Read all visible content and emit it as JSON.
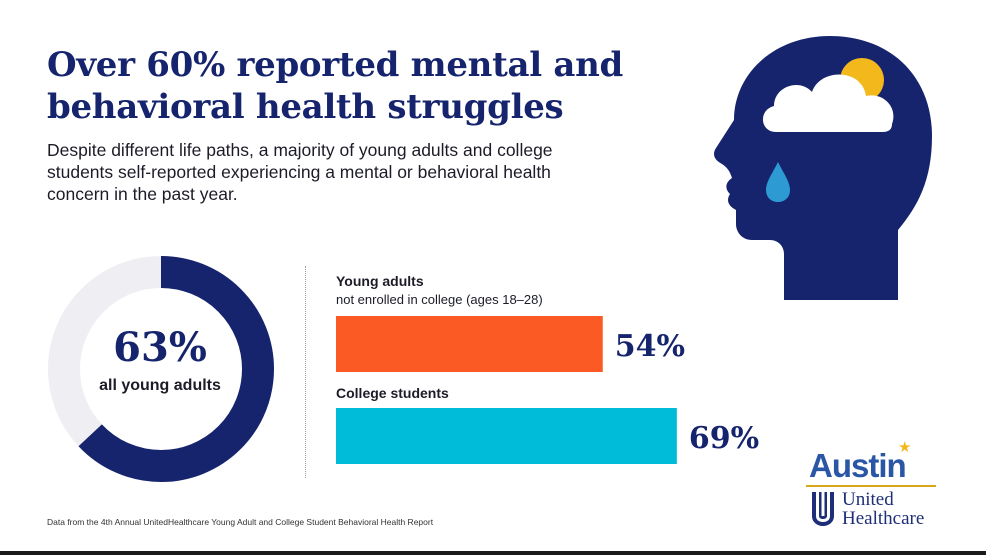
{
  "title": "Over 60% reported mental and behavioral health struggles",
  "subtitle": "Despite different life paths, a majority of young adults and college students self-reported experiencing a mental or behavioral health concern in the past year.",
  "footnote": "Data from the 4th Annual UnitedHealthcare Young Adult and College Student Behavioral Health Report",
  "logo": {
    "austin": "Austin",
    "line1": "United",
    "line2": "Healthcare",
    "star": "★"
  },
  "icons": {
    "illustration": "head-with-raincloud-and-tear-icon",
    "logo_mark": "shield-stripes-icon"
  },
  "colors": {
    "navy": "#16246e",
    "ring_track": "#efeef3",
    "orange": "#fb5a24",
    "cyan": "#00bcd8",
    "sun": "#f2b81c",
    "tear": "#2e9ad4"
  },
  "chart_data": [
    {
      "type": "pie",
      "variant": "donut",
      "labels": [
        "all young adults"
      ],
      "values": [
        63
      ],
      "value_label": "63%",
      "unit": "%"
    },
    {
      "type": "bar",
      "orientation": "horizontal",
      "categories": [
        {
          "title": "Young adults",
          "subtitle": "not enrolled in college (ages 18–28)"
        },
        {
          "title": "College students",
          "subtitle": ""
        }
      ],
      "values": [
        54,
        69
      ],
      "value_labels": [
        "54%",
        "69%"
      ],
      "colors": [
        "#fb5a24",
        "#00bcd8"
      ],
      "unit": "%",
      "xlim": [
        0,
        100
      ]
    }
  ]
}
